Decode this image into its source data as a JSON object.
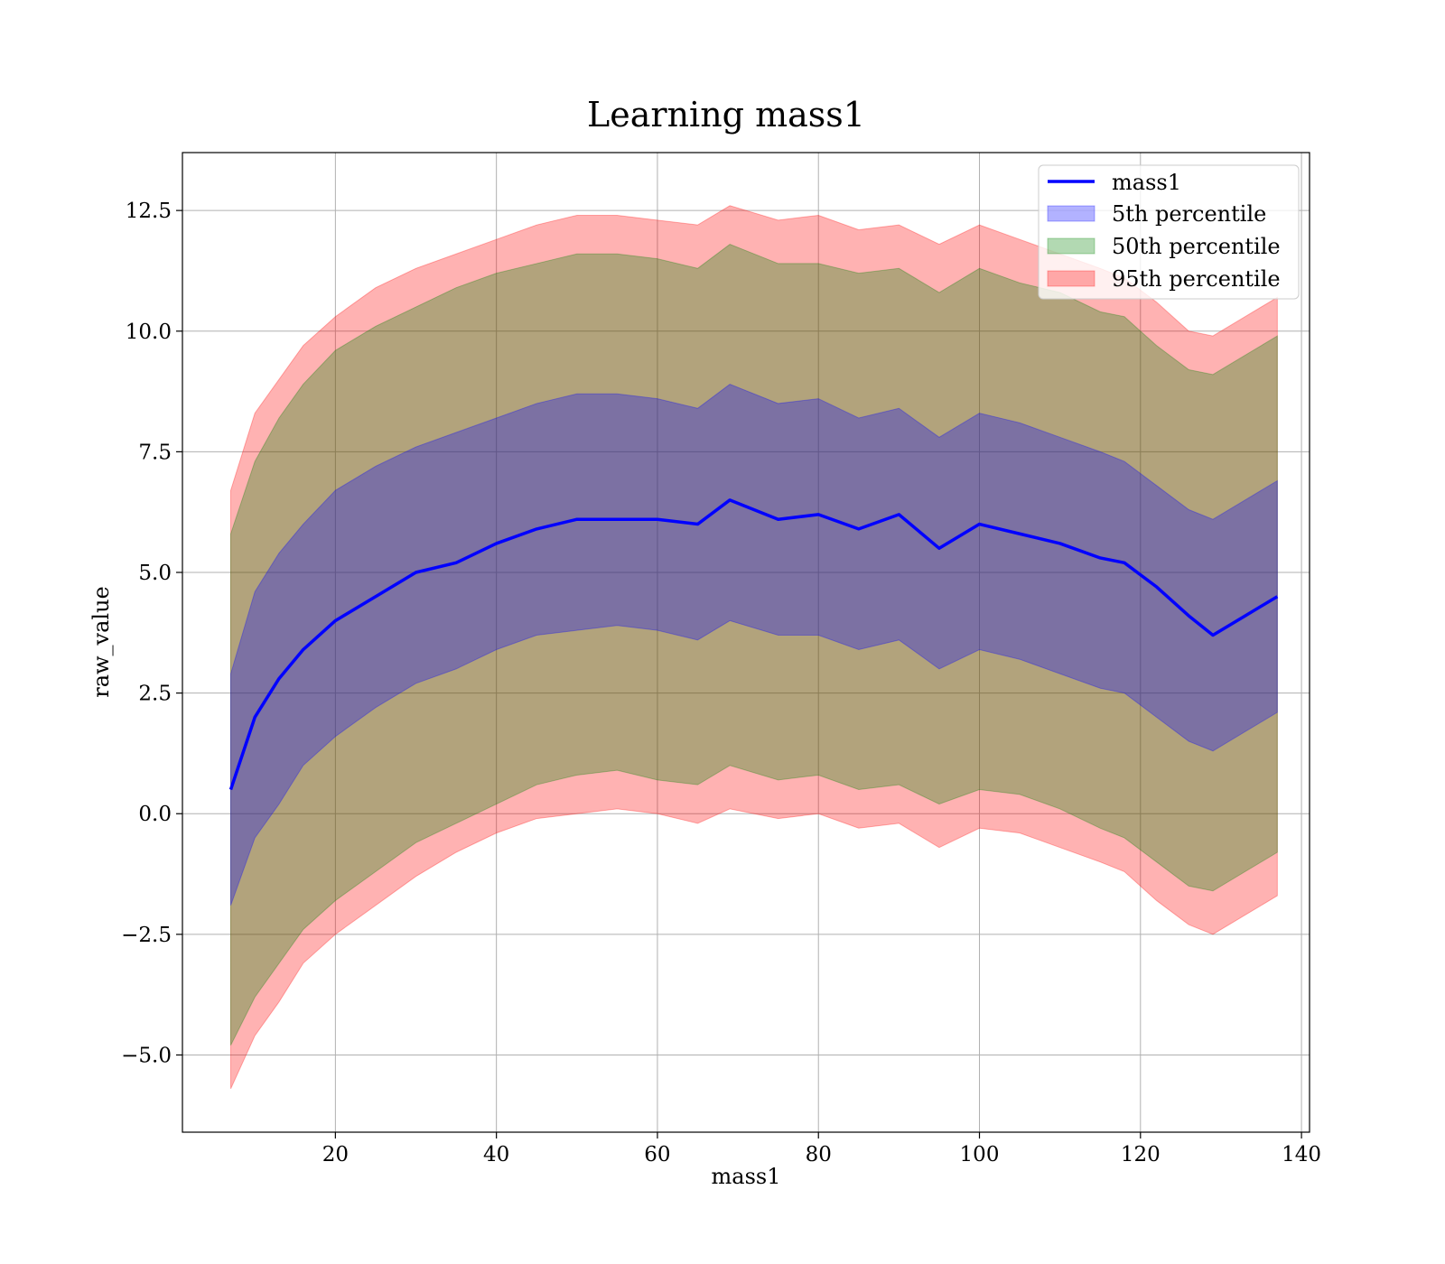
{
  "chart_data": {
    "type": "area",
    "title": "Learning mass1",
    "xlabel": "mass1",
    "ylabel": "raw_value",
    "xlim": [
      1,
      141
    ],
    "ylim": [
      -6.6,
      13.7
    ],
    "x_ticks": [
      20,
      40,
      60,
      80,
      100,
      120,
      140
    ],
    "x_tick_labels": [
      "20",
      "40",
      "60",
      "80",
      "100",
      "120",
      "140"
    ],
    "y_ticks": [
      -5.0,
      -2.5,
      0.0,
      2.5,
      5.0,
      7.5,
      10.0,
      12.5
    ],
    "y_tick_labels": [
      "−5.0",
      "−2.5",
      "0.0",
      "2.5",
      "5.0",
      "7.5",
      "10.0",
      "12.5"
    ],
    "grid": true,
    "legend_position": "top-right",
    "colors": {
      "mass1": "#0000ff",
      "p5": "#0000ff",
      "p50": "#008000",
      "p95": "#ff0000",
      "grid": "#b0b0b0"
    },
    "x": [
      7,
      10,
      13,
      16,
      20,
      25,
      30,
      35,
      40,
      45,
      50,
      55,
      60,
      65,
      69,
      75,
      80,
      85,
      90,
      95,
      100,
      105,
      110,
      115,
      118,
      122,
      126,
      129,
      133,
      137
    ],
    "series": [
      {
        "name": "mass1",
        "kind": "line",
        "values": [
          0.5,
          2.0,
          2.8,
          3.4,
          4.0,
          4.5,
          5.0,
          5.2,
          5.6,
          5.9,
          6.1,
          6.1,
          6.1,
          6.0,
          6.5,
          6.1,
          6.2,
          5.9,
          6.2,
          5.5,
          6.0,
          5.8,
          5.6,
          5.3,
          5.2,
          4.7,
          4.1,
          3.7,
          4.1,
          4.5
        ]
      },
      {
        "name": "5th percentile",
        "kind": "band",
        "lower": [
          -1.9,
          -0.5,
          0.2,
          1.0,
          1.6,
          2.2,
          2.7,
          3.0,
          3.4,
          3.7,
          3.8,
          3.9,
          3.8,
          3.6,
          4.0,
          3.7,
          3.7,
          3.4,
          3.6,
          3.0,
          3.4,
          3.2,
          2.9,
          2.6,
          2.5,
          2.0,
          1.5,
          1.3,
          1.7,
          2.1
        ],
        "upper": [
          2.9,
          4.6,
          5.4,
          6.0,
          6.7,
          7.2,
          7.6,
          7.9,
          8.2,
          8.5,
          8.7,
          8.7,
          8.6,
          8.4,
          8.9,
          8.5,
          8.6,
          8.2,
          8.4,
          7.8,
          8.3,
          8.1,
          7.8,
          7.5,
          7.3,
          6.8,
          6.3,
          6.1,
          6.5,
          6.9
        ]
      },
      {
        "name": "50th percentile",
        "kind": "band",
        "lower": [
          -4.8,
          -3.8,
          -3.1,
          -2.4,
          -1.8,
          -1.2,
          -0.6,
          -0.2,
          0.2,
          0.6,
          0.8,
          0.9,
          0.7,
          0.6,
          1.0,
          0.7,
          0.8,
          0.5,
          0.6,
          0.2,
          0.5,
          0.4,
          0.1,
          -0.3,
          -0.5,
          -1.0,
          -1.5,
          -1.6,
          -1.2,
          -0.8
        ],
        "upper": [
          5.8,
          7.3,
          8.2,
          8.9,
          9.6,
          10.1,
          10.5,
          10.9,
          11.2,
          11.4,
          11.6,
          11.6,
          11.5,
          11.3,
          11.8,
          11.4,
          11.4,
          11.2,
          11.3,
          10.8,
          11.3,
          11.0,
          10.8,
          10.4,
          10.3,
          9.7,
          9.2,
          9.1,
          9.5,
          9.9
        ]
      },
      {
        "name": "95th percentile",
        "kind": "band",
        "lower": [
          -5.7,
          -4.6,
          -3.9,
          -3.1,
          -2.5,
          -1.9,
          -1.3,
          -0.8,
          -0.4,
          -0.1,
          0.0,
          0.1,
          0.0,
          -0.2,
          0.1,
          -0.1,
          0.0,
          -0.3,
          -0.2,
          -0.7,
          -0.3,
          -0.4,
          -0.7,
          -1.0,
          -1.2,
          -1.8,
          -2.3,
          -2.5,
          -2.1,
          -1.7
        ],
        "upper": [
          6.7,
          8.3,
          9.0,
          9.7,
          10.3,
          10.9,
          11.3,
          11.6,
          11.9,
          12.2,
          12.4,
          12.4,
          12.3,
          12.2,
          12.6,
          12.3,
          12.4,
          12.1,
          12.2,
          11.8,
          12.2,
          11.9,
          11.6,
          11.3,
          11.1,
          10.6,
          10.0,
          9.9,
          10.3,
          10.7
        ]
      }
    ]
  },
  "legend": {
    "items": [
      {
        "label": "mass1",
        "kind": "line",
        "color": "#0000ff"
      },
      {
        "label": "5th percentile",
        "kind": "patch",
        "color": "#0000ff"
      },
      {
        "label": "50th percentile",
        "kind": "patch",
        "color": "#008000"
      },
      {
        "label": "95th percentile",
        "kind": "patch",
        "color": "#ff0000"
      }
    ]
  }
}
